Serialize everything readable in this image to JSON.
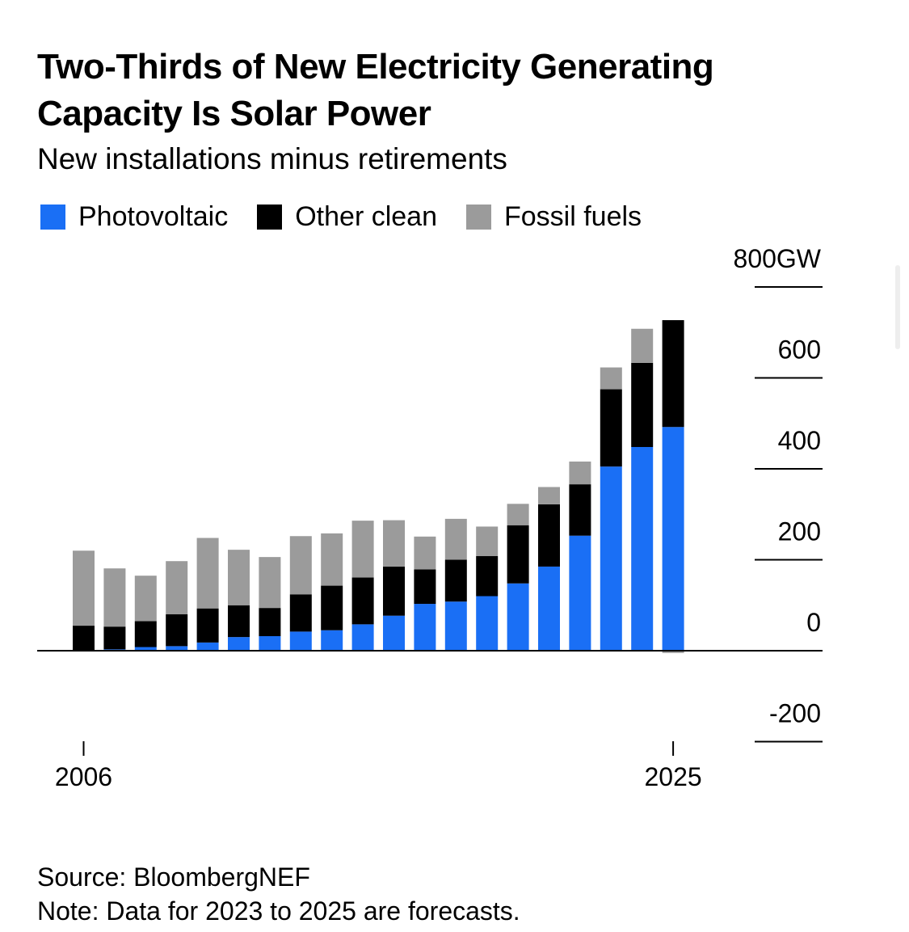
{
  "title": "Two-Thirds of New Electricity Generating Capacity Is Solar Power",
  "subtitle": "New installations minus retirements",
  "legend": [
    {
      "label": "Photovoltaic",
      "color": "#1a6ff5"
    },
    {
      "label": "Other clean",
      "color": "#000000"
    },
    {
      "label": "Fossil fuels",
      "color": "#9b9b9b"
    }
  ],
  "chart_data": {
    "type": "bar",
    "stacked": true,
    "title": "Two-Thirds of New Electricity Generating Capacity Is Solar Power",
    "subtitle": "New installations minus retirements",
    "x": [
      2006,
      2007,
      2008,
      2009,
      2010,
      2011,
      2012,
      2013,
      2014,
      2015,
      2016,
      2017,
      2018,
      2019,
      2020,
      2021,
      2022,
      2023,
      2024,
      2025
    ],
    "x_tick_labels": [
      "2006",
      "2025"
    ],
    "series": [
      {
        "name": "Photovoltaic",
        "color": "#1a6ff5",
        "values": [
          1,
          3,
          8,
          10,
          18,
          30,
          32,
          42,
          45,
          58,
          77,
          103,
          108,
          120,
          148,
          185,
          253,
          405,
          448,
          492
        ]
      },
      {
        "name": "Other clean",
        "color": "#000000",
        "values": [
          54,
          50,
          57,
          70,
          75,
          70,
          62,
          82,
          98,
          103,
          108,
          76,
          92,
          88,
          128,
          137,
          113,
          170,
          185,
          235
        ]
      },
      {
        "name": "Fossil fuels",
        "color": "#9b9b9b",
        "values": [
          165,
          128,
          100,
          117,
          155,
          122,
          112,
          128,
          115,
          125,
          102,
          72,
          90,
          65,
          47,
          38,
          50,
          48,
          75,
          -5
        ]
      }
    ],
    "y_ticks": [
      -200,
      0,
      200,
      400,
      600,
      800
    ],
    "y_tick_labels": [
      "-200",
      "0",
      "200",
      "400",
      "600",
      "800GW"
    ],
    "ylim": [
      -200,
      800
    ],
    "xlabel": "",
    "ylabel": "",
    "y_axis_position": "right",
    "grid": false,
    "legend_position": "top-left"
  },
  "footer": {
    "source": "Source: BloombergNEF",
    "note": "Note: Data for 2023 to 2025 are forecasts."
  }
}
